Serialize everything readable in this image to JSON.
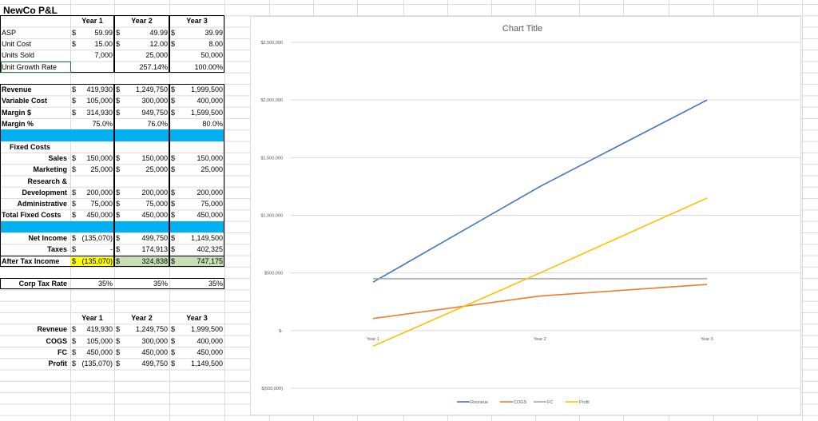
{
  "sheet_title": "NewCo P&L",
  "years": [
    "Year 1",
    "Year 2",
    "Year 3"
  ],
  "rows": [
    {
      "r": 2,
      "label": "ASP",
      "cur": true,
      "vals": [
        "59.99",
        "49.99",
        "39.99"
      ]
    },
    {
      "r": 3,
      "label": "Unit Cost",
      "cur": true,
      "vals": [
        "15.00",
        "12.00",
        "8.00"
      ]
    },
    {
      "r": 4,
      "label": "Units Sold",
      "cur": false,
      "vals": [
        "7,000",
        "25,000",
        "50,000"
      ]
    },
    {
      "r": 5,
      "label": "Unit Growth Rate",
      "cur": false,
      "vals": [
        "",
        "257.14%",
        "100.00%"
      ]
    },
    {
      "r": 7,
      "label": "Revenue",
      "bold": true,
      "cur": true,
      "vals": [
        "419,930",
        "1,249,750",
        "1,999,500"
      ]
    },
    {
      "r": 8,
      "label": "Variable Cost",
      "bold": true,
      "cur": true,
      "vals": [
        "105,000",
        "300,000",
        "400,000"
      ]
    },
    {
      "r": 9,
      "label": "Margin $",
      "bold": true,
      "cur": true,
      "vals": [
        "314,930",
        "949,750",
        "1,599,500"
      ]
    },
    {
      "r": 10,
      "label": "Margin %",
      "bold": true,
      "cur": false,
      "vals": [
        "75.0%",
        "76.0%",
        "80.0%"
      ]
    },
    {
      "r": 12,
      "label": "Fixed Costs",
      "bold": true,
      "indent": true,
      "vals": []
    },
    {
      "r": 13,
      "label": "Sales",
      "bold": true,
      "right": true,
      "cur": true,
      "vals": [
        "150,000",
        "150,000",
        "150,000"
      ]
    },
    {
      "r": 14,
      "label": "Marketing",
      "bold": true,
      "right": true,
      "cur": true,
      "vals": [
        "25,000",
        "25,000",
        "25,000"
      ]
    },
    {
      "r": 15,
      "label": "Research &",
      "bold": true,
      "right": true,
      "vals": []
    },
    {
      "r": 16,
      "label": "Development",
      "bold": true,
      "right": true,
      "cur": true,
      "vals": [
        "200,000",
        "200,000",
        "200,000"
      ]
    },
    {
      "r": 17,
      "label": "Administrative",
      "bold": true,
      "right": true,
      "cur": true,
      "vals": [
        "75,000",
        "75,000",
        "75,000"
      ]
    },
    {
      "r": 18,
      "label": "Total Fixed Costs",
      "bold": true,
      "cur": true,
      "vals": [
        "450,000",
        "450,000",
        "450,000"
      ]
    },
    {
      "r": 20,
      "label": "Net Income",
      "bold": true,
      "right": true,
      "cur": true,
      "vals": [
        "(135,070)",
        "499,750",
        "1,149,500"
      ]
    },
    {
      "r": 21,
      "label": "Taxes",
      "bold": true,
      "right": true,
      "cur": true,
      "vals": [
        "-",
        "174,913",
        "402,325"
      ]
    },
    {
      "r": 22,
      "label": "After Tax Income",
      "bold": true,
      "cur": true,
      "vals": [
        "(135,070)",
        "324,838",
        "747,175"
      ],
      "fills": [
        "#ffff00",
        "#c6e0b4",
        "#c6e0b4"
      ]
    },
    {
      "r": 24,
      "label": "Corp Tax Rate",
      "bold": true,
      "right": true,
      "cur": false,
      "vals": [
        "35%",
        "35%",
        "35%"
      ]
    },
    {
      "r": 28,
      "label": "Revneue",
      "bold": true,
      "right": true,
      "cur": true,
      "vals": [
        "419,930",
        "1,249,750",
        "1,999,500"
      ]
    },
    {
      "r": 29,
      "label": "COGS",
      "bold": true,
      "right": true,
      "cur": true,
      "vals": [
        "105,000",
        "300,000",
        "400,000"
      ]
    },
    {
      "r": 30,
      "label": "FC",
      "bold": true,
      "right": true,
      "cur": true,
      "vals": [
        "450,000",
        "450,000",
        "450,000"
      ]
    },
    {
      "r": 31,
      "label": "Profit",
      "bold": true,
      "right": true,
      "cur": true,
      "vals": [
        "(135,070)",
        "499,750",
        "1,149,500"
      ]
    }
  ],
  "header_rows": [
    1,
    27
  ],
  "band_color": "#00b0f0",
  "chart_data": {
    "type": "line",
    "title": "Chart Title",
    "categories": [
      "Year 1",
      "Year 2",
      "Year 3"
    ],
    "ylim": [
      -500000,
      2500000
    ],
    "yticks": [
      -500000,
      0,
      500000,
      1000000,
      1500000,
      2000000,
      2500000
    ],
    "ytick_labels": [
      "$(500,000)",
      "$-",
      "$500,000",
      "$1,000,000",
      "$1,500,000",
      "$2,000,000",
      "$2,500,000"
    ],
    "grid": true,
    "legend": "bottom",
    "series": [
      {
        "name": "Revneue",
        "color": "#4472c4",
        "values": [
          419930,
          1249750,
          1999500
        ]
      },
      {
        "name": "COGS",
        "color": "#ed7d31",
        "values": [
          105000,
          300000,
          400000
        ]
      },
      {
        "name": "FC",
        "color": "#a5a5a5",
        "values": [
          450000,
          450000,
          450000
        ]
      },
      {
        "name": "Profit",
        "color": "#ffc000",
        "values": [
          -135070,
          499750,
          1149500
        ]
      }
    ]
  }
}
